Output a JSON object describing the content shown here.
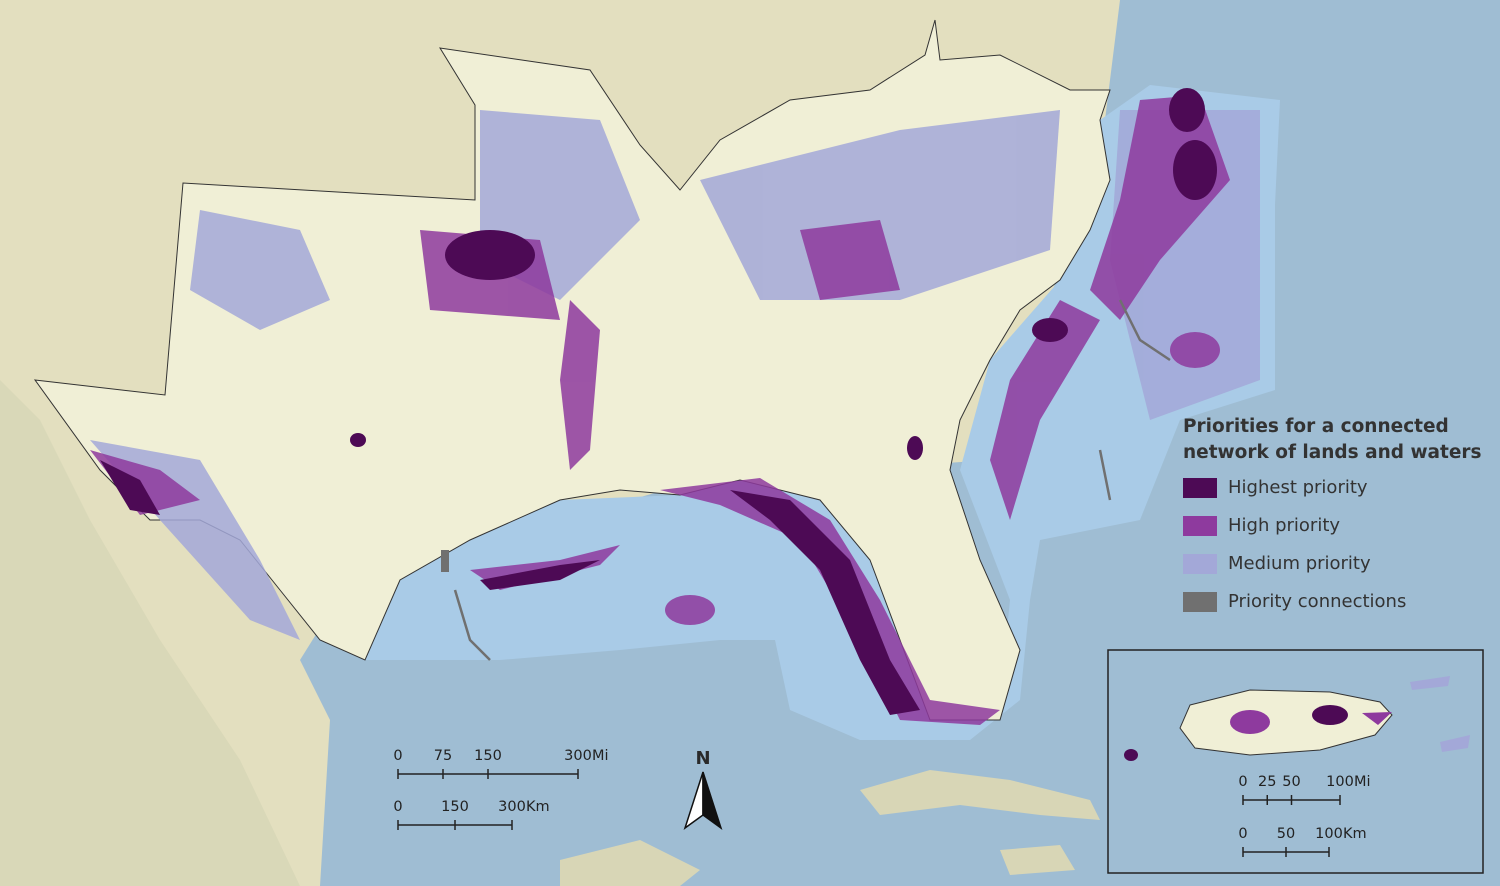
{
  "legend": {
    "title": [
      "Priorities for a connected",
      "network of lands and waters"
    ],
    "items": [
      {
        "label": "Highest priority",
        "color": "#4d0a55"
      },
      {
        "label": "High priority",
        "color": "#8e3a9e"
      },
      {
        "label": "Medium priority",
        "color": "#a3a8d8"
      },
      {
        "label": "Priority connections",
        "color": "#707070"
      }
    ]
  },
  "north_arrow": "N",
  "scale_bar": {
    "miles": {
      "ticks": [
        0,
        75,
        150,
        300
      ],
      "unit": "Mi"
    },
    "km": {
      "ticks": [
        0,
        150,
        300
      ],
      "unit": "Km"
    }
  },
  "inset_scale_bar": {
    "miles": {
      "ticks": [
        0,
        25,
        50,
        100
      ],
      "unit": "Mi"
    },
    "km": {
      "ticks": [
        0,
        50,
        100
      ],
      "unit": "Km"
    }
  }
}
